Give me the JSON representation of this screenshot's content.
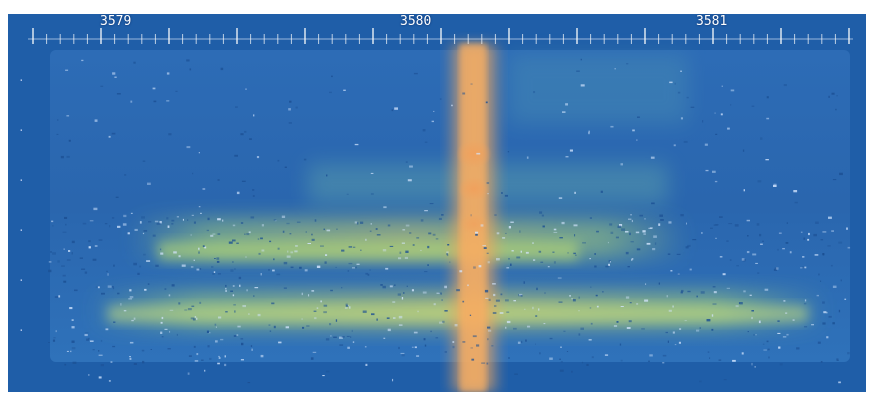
{
  "waterfall": {
    "frequency_labels": [
      "3579",
      "3580",
      "3581"
    ],
    "colors": {
      "background": "#1f5ea8",
      "panel": "#3a78c2",
      "signal_core": "#f2a65a",
      "signal_hot": "#f59b57",
      "band_green": "#9fd06a",
      "band_yellow": "#d9d46a",
      "noise_light": "#cfe4ff"
    }
  }
}
